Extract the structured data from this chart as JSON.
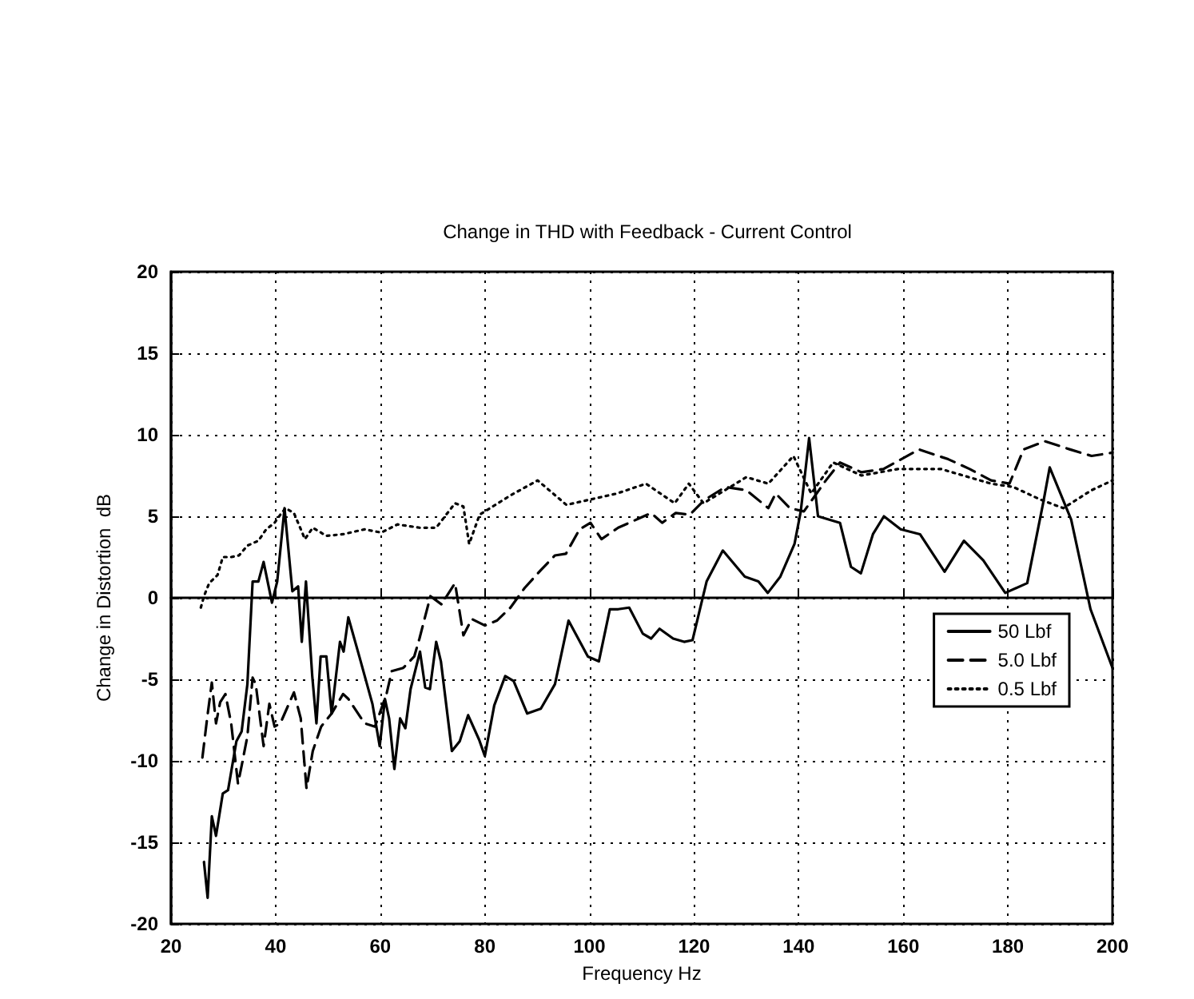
{
  "chart_data": {
    "type": "line",
    "title": "Change in THD with Feedback - Current Control",
    "xlabel": "Frequency Hz",
    "ylabel": "Change in Distortion  dB",
    "xlim": [
      20,
      200
    ],
    "xticks": [
      20,
      40,
      60,
      80,
      100,
      120,
      140,
      160,
      180,
      200
    ],
    "ylim": [
      -20,
      20
    ],
    "yticks": [
      -20,
      -15,
      -10,
      -5,
      0,
      5,
      10,
      15,
      20
    ],
    "grid": true,
    "legend": "right",
    "marker": "none",
    "series": [
      {
        "name": "50 Lbf",
        "color": "#000000",
        "line_style": "solid",
        "x": [
          26.3,
          27,
          27.8,
          28.6,
          29.9,
          30.9,
          32.5,
          33.5,
          34.6,
          35.6,
          36.7,
          37.7,
          39.3,
          40.3,
          41.7,
          43.2,
          44.3,
          45,
          45.8,
          47,
          47.8,
          48.6,
          49.7,
          50.7,
          52.3,
          53,
          53.9,
          56,
          58.5,
          59.9,
          60.9,
          61.7,
          62.7,
          63.8,
          64.8,
          65.8,
          67.6,
          68.6,
          69.5,
          70.7,
          71.6,
          73.7,
          75.2,
          76.8,
          78.9,
          80,
          81.8,
          83.9,
          85.5,
          88.1,
          90.7,
          93.4,
          96,
          99.7,
          101.8,
          103.9,
          105.5,
          107.6,
          110.2,
          111.8,
          113.4,
          116,
          118.1,
          119.7,
          122.4,
          125.5,
          129.7,
          132.3,
          134.1,
          136.5,
          139.2,
          140.4,
          142,
          143.7,
          147.9,
          150,
          151.9,
          154.2,
          156.3,
          159.5,
          163.2,
          167.9,
          171.6,
          175.3,
          179.5,
          183.7,
          186.8,
          188,
          192.1,
          195.8,
          200
        ],
        "values": [
          -16.2,
          -18.4,
          -13.4,
          -14.6,
          -12,
          -11.8,
          -8.8,
          -8.2,
          -5.3,
          1,
          1,
          2.2,
          -0.3,
          1,
          5.5,
          0.4,
          0.7,
          -2.7,
          1,
          -4.8,
          -7.7,
          -3.6,
          -3.6,
          -7.1,
          -2.7,
          -3.3,
          -1.2,
          -3.6,
          -6.5,
          -9.1,
          -6.2,
          -7.4,
          -10.5,
          -7.4,
          -8,
          -5.6,
          -3.3,
          -5.5,
          -5.6,
          -2.7,
          -3.9,
          -9.4,
          -8.8,
          -7.2,
          -8.7,
          -9.7,
          -6.6,
          -4.8,
          -5.1,
          -7.1,
          -6.8,
          -5.3,
          -1.4,
          -3.6,
          -3.9,
          -0.7,
          -0.7,
          -0.6,
          -2.2,
          -2.5,
          -1.9,
          -2.5,
          -2.7,
          -2.6,
          1,
          2.9,
          1.3,
          1,
          0.3,
          1.3,
          3.3,
          5.3,
          9.8,
          5,
          4.6,
          1.9,
          1.5,
          3.9,
          5,
          4.2,
          3.9,
          1.6,
          3.5,
          2.3,
          0.3,
          0.9,
          5.9,
          8,
          4.8,
          -0.7,
          -4.3
        ]
      },
      {
        "name": "5.0 Lbf",
        "color": "#000000",
        "line_style": "dashed",
        "x": [
          26,
          26.9,
          27.8,
          28.6,
          29.4,
          30.4,
          31.5,
          32.8,
          33.5,
          34.6,
          35.6,
          36.2,
          37.7,
          38.8,
          39.8,
          40.9,
          43.5,
          44.8,
          45.9,
          47.1,
          48.7,
          50.7,
          52.9,
          53.9,
          57,
          59,
          61.2,
          62.2,
          64.4,
          66.5,
          67.5,
          69.6,
          71.7,
          74.3,
          75.9,
          77.5,
          80,
          82.3,
          84.9,
          87.6,
          90.7,
          93.4,
          95.5,
          98.1,
          100.2,
          102.3,
          105.5,
          109.7,
          111.8,
          113.9,
          116.5,
          119.2,
          122,
          126,
          130,
          134.2,
          135.6,
          138.3,
          141,
          145.2,
          147.9,
          152,
          156.2,
          163,
          168.6,
          172.7,
          176.8,
          180.3,
          183,
          187.1,
          191.9,
          196,
          200
        ],
        "values": [
          -9.8,
          -7.4,
          -5.2,
          -7.7,
          -6.4,
          -5.9,
          -7.7,
          -11.4,
          -10.3,
          -8.5,
          -4.9,
          -5.3,
          -9.1,
          -6.5,
          -7.9,
          -7.7,
          -5.8,
          -7.4,
          -11.7,
          -9.4,
          -7.9,
          -7.1,
          -5.9,
          -6.2,
          -7.7,
          -7.9,
          -5.9,
          -4.5,
          -4.3,
          -3.6,
          -2.5,
          0.1,
          -0.4,
          0.9,
          -2.3,
          -1.3,
          -1.7,
          -1.4,
          -0.6,
          0.6,
          1.7,
          2.6,
          2.7,
          4.2,
          4.6,
          3.6,
          4.3,
          4.9,
          5.2,
          4.6,
          5.2,
          5.1,
          6,
          6.8,
          6.6,
          5.5,
          6.4,
          5.5,
          5.3,
          7.2,
          8.3,
          7.7,
          7.9,
          9.1,
          8.5,
          7.9,
          7.2,
          7,
          9.1,
          9.6,
          9.1,
          8.7,
          8.9
        ]
      },
      {
        "name": "0.5 Lbf",
        "color": "#000000",
        "line_style": "dotted",
        "x": [
          25.7,
          26.3,
          27.3,
          28.9,
          29.9,
          31.5,
          33,
          34.6,
          36.7,
          38.2,
          39.8,
          40.9,
          41.9,
          43.5,
          45.6,
          47.1,
          49.7,
          52.9,
          57,
          60.2,
          63.3,
          67.5,
          70.7,
          74.3,
          75.9,
          77,
          79,
          80,
          85,
          90.1,
          95.6,
          105.3,
          110.8,
          116.3,
          119,
          121.8,
          130,
          134.2,
          139,
          142.4,
          146.6,
          152,
          159,
          167.2,
          176.8,
          181,
          186.4,
          190.6,
          196,
          200
        ],
        "values": [
          -0.6,
          0.1,
          0.9,
          1.4,
          2.5,
          2.5,
          2.6,
          3.2,
          3.5,
          4.2,
          4.6,
          5.1,
          5.5,
          5.2,
          3.6,
          4.3,
          3.8,
          3.9,
          4.2,
          4,
          4.5,
          4.3,
          4.3,
          5.8,
          5.6,
          3.3,
          5.1,
          5.3,
          6.3,
          7.2,
          5.7,
          6.4,
          7,
          5.8,
          7,
          5.8,
          7.4,
          7,
          8.7,
          6.4,
          8.3,
          7.5,
          7.9,
          7.9,
          7,
          6.8,
          6,
          5.5,
          6.6,
          7.2
        ]
      }
    ]
  }
}
